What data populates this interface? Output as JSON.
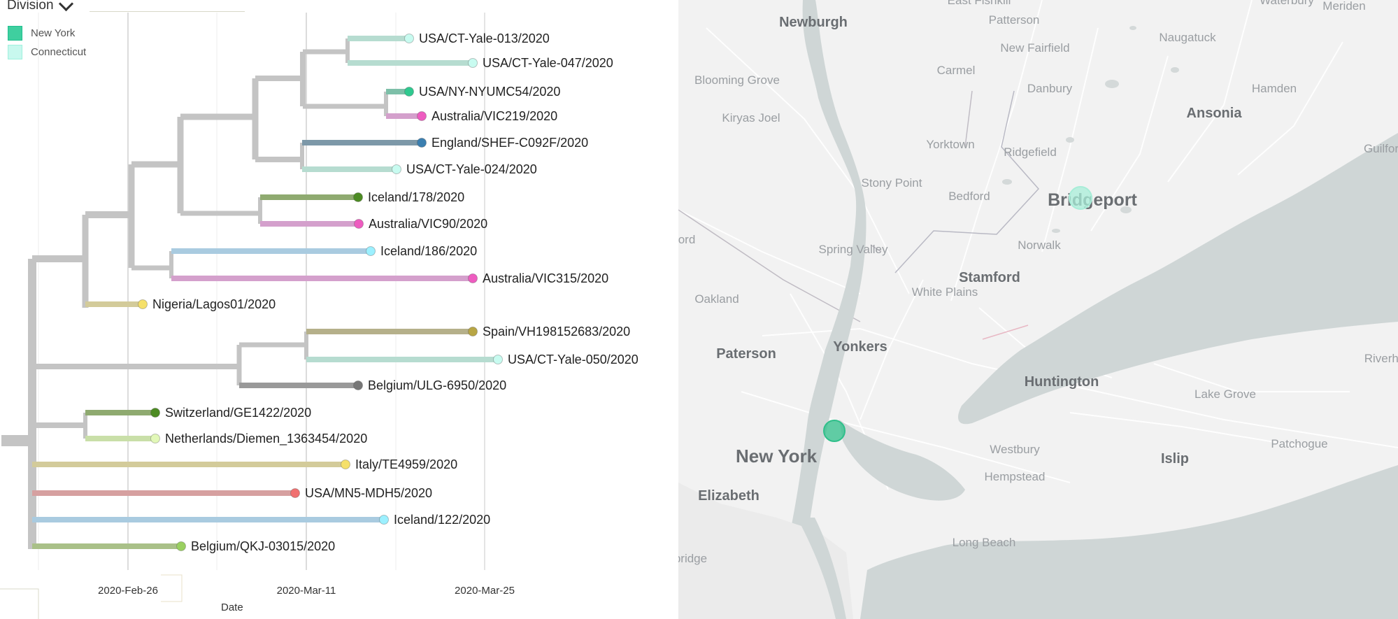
{
  "tree": {
    "color_by_label": "Division",
    "legend": [
      {
        "label": "New York",
        "color": "#1fbf8f",
        "fill": "#3fcf9f"
      },
      {
        "label": "Connecticut",
        "color": "#9ff0dd",
        "fill": "#c8f8ee"
      }
    ],
    "axis": {
      "title": "Date",
      "ticks": [
        "2020-Feb-26",
        "2020-Mar-11",
        "2020-Mar-25"
      ]
    },
    "tips": [
      {
        "name": "USA/CT-Yale-013/2020",
        "color": "#b6dcd0",
        "dot": "#c8fbf0"
      },
      {
        "name": "USA/CT-Yale-047/2020",
        "color": "#b6dcd0",
        "dot": "#c8fbf0"
      },
      {
        "name": "USA/NY-NYUMC54/2020",
        "color": "#7dbfa8",
        "dot": "#2fc98f"
      },
      {
        "name": "Australia/VIC219/2020",
        "color": "#d4a0cc",
        "dot": "#ee5cc0"
      },
      {
        "name": "England/SHEF-C092F/2020",
        "color": "#7d98a8",
        "dot": "#3b7fb0"
      },
      {
        "name": "USA/CT-Yale-024/2020",
        "color": "#b6dcd0",
        "dot": "#c8fbf0"
      },
      {
        "name": "Iceland/178/2020",
        "color": "#8faa70",
        "dot": "#4c8b22"
      },
      {
        "name": "Australia/VIC90/2020",
        "color": "#d4a0cc",
        "dot": "#ee5cc0"
      },
      {
        "name": "Iceland/186/2020",
        "color": "#a9cbe0",
        "dot": "#9cf0ff"
      },
      {
        "name": "Australia/VIC315/2020",
        "color": "#d4a0cc",
        "dot": "#ee5cc0"
      },
      {
        "name": "Nigeria/Lagos01/2020",
        "color": "#d3cb9a",
        "dot": "#f5e06a"
      },
      {
        "name": "Spain/VH198152683/2020",
        "color": "#b5b08a",
        "dot": "#b8a645"
      },
      {
        "name": "USA/CT-Yale-050/2020",
        "color": "#b6dcd0",
        "dot": "#c8fbf0"
      },
      {
        "name": "Belgium/ULG-6950/2020",
        "color": "#999999",
        "dot": "#777777"
      },
      {
        "name": "Switzerland/GE1422/2020",
        "color": "#8faa70",
        "dot": "#4c8b22"
      },
      {
        "name": "Netherlands/Diemen_1363454/2020",
        "color": "#c9dfa8",
        "dot": "#e2f8b8"
      },
      {
        "name": "Italy/TE4959/2020",
        "color": "#d3cb9a",
        "dot": "#f5e06a"
      },
      {
        "name": "USA/MN5-MDH5/2020",
        "color": "#d6a0a0",
        "dot": "#f07070"
      },
      {
        "name": "Iceland/122/2020",
        "color": "#a9cbe0",
        "dot": "#9cf0ff"
      },
      {
        "name": "Belgium/QKJ-03015/2020",
        "color": "#a9c088",
        "dot": "#9ad060"
      }
    ]
  },
  "map": {
    "major_labels": [
      "New York",
      "Bridgeport",
      "Stamford",
      "Yonkers",
      "Huntington",
      "Paterson",
      "Elizabeth",
      "Ansonia",
      "Newburgh",
      "Islip"
    ],
    "minor_labels": [
      "Patterson",
      "New Fairfield",
      "Naugatuck",
      "Danbury",
      "Carmel",
      "Blooming Grove",
      "Hamden",
      "Kiryas Joel",
      "Ridgefield",
      "Yorktown",
      "Stony Point",
      "Bedford",
      "Spring Valley",
      "Norwalk",
      "Oakland",
      "White Plains",
      "Westbury",
      "Hempstead",
      "Patchogue",
      "Lake Grove",
      "Long Beach",
      "Meriden",
      "Riverhe",
      "Guilfor",
      "ord",
      "odbridge",
      "East Fishkill",
      "Waterbury"
    ],
    "markers": [
      {
        "location": "New York",
        "division": "New York",
        "color": "#2fbf8a"
      },
      {
        "location": "Bridgeport",
        "division": "Connecticut",
        "color": "#a8edd8"
      }
    ]
  }
}
